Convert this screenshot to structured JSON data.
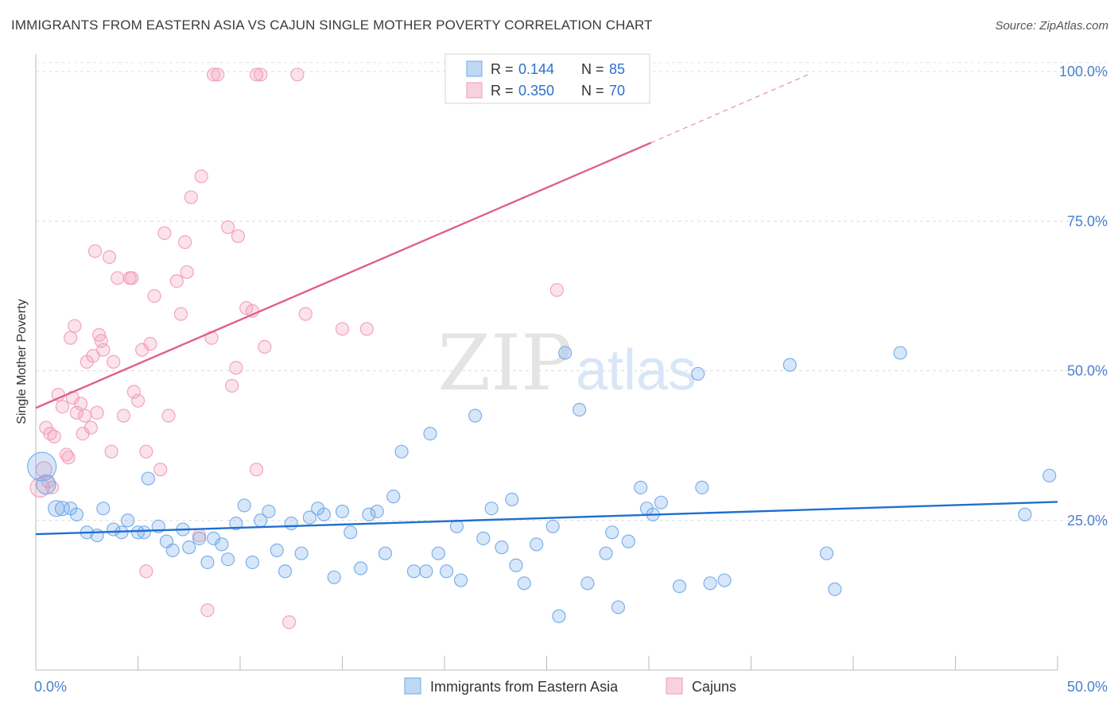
{
  "title": "IMMIGRANTS FROM EASTERN ASIA VS CAJUN SINGLE MOTHER POVERTY CORRELATION CHART",
  "source": "Source: ZipAtlas.com",
  "watermark": {
    "zip": "ZIP",
    "atlas": "atlas"
  },
  "chart_data": {
    "type": "scatter",
    "ylabel": "Single Mother Poverty",
    "xlim": [
      0,
      50
    ],
    "ylim": [
      0,
      102
    ],
    "x_tick_labels": [
      "0.0%",
      "50.0%"
    ],
    "y_tick_labels": [
      "25.0%",
      "50.0%",
      "75.0%",
      "100.0%"
    ],
    "y_ticks": [
      25,
      50,
      75,
      100
    ],
    "grid": "horizontal dashed",
    "legend_position": "top-center",
    "series": [
      {
        "name": "Immigrants from Eastern Asia",
        "color": "#6fa8e8",
        "line_color": "#1f6fd0",
        "r": "0.144",
        "n": "85",
        "trend": {
          "x": [
            0,
            50
          ],
          "y": [
            22.7,
            28.1
          ]
        },
        "points": [
          [
            0.3,
            34,
            18
          ],
          [
            0.5,
            31,
            12
          ],
          [
            1,
            27,
            10
          ],
          [
            1.3,
            27,
            9
          ],
          [
            1.7,
            27,
            8
          ],
          [
            2,
            26,
            8
          ],
          [
            2.5,
            23,
            8
          ],
          [
            3,
            22.5,
            8
          ],
          [
            3.3,
            27,
            8
          ],
          [
            3.8,
            23.5,
            8
          ],
          [
            4.2,
            23,
            8
          ],
          [
            4.5,
            25,
            8
          ],
          [
            5,
            23,
            8
          ],
          [
            5.3,
            23,
            8
          ],
          [
            5.5,
            32,
            8
          ],
          [
            6,
            24,
            8
          ],
          [
            6.4,
            21.5,
            8
          ],
          [
            6.7,
            20,
            8
          ],
          [
            7.2,
            23.5,
            8
          ],
          [
            7.5,
            20.5,
            8
          ],
          [
            8,
            22,
            8
          ],
          [
            8.4,
            18,
            8
          ],
          [
            8.7,
            22,
            8
          ],
          [
            9.1,
            21,
            8
          ],
          [
            9.4,
            18.5,
            8
          ],
          [
            9.8,
            24.5,
            8
          ],
          [
            10.2,
            27.5,
            8
          ],
          [
            10.6,
            18,
            8
          ],
          [
            11,
            25,
            8
          ],
          [
            11.4,
            26.5,
            8
          ],
          [
            11.8,
            20,
            8
          ],
          [
            12.2,
            16.5,
            8
          ],
          [
            12.5,
            24.5,
            8
          ],
          [
            13,
            19.5,
            8
          ],
          [
            13.4,
            25.5,
            8
          ],
          [
            13.8,
            27,
            8
          ],
          [
            14.1,
            26,
            8
          ],
          [
            14.6,
            15.5,
            8
          ],
          [
            15,
            26.5,
            8
          ],
          [
            15.4,
            23,
            8
          ],
          [
            15.9,
            17,
            8
          ],
          [
            16.3,
            26,
            8
          ],
          [
            16.7,
            26.5,
            8
          ],
          [
            17.1,
            19.5,
            8
          ],
          [
            17.5,
            29,
            8
          ],
          [
            17.9,
            36.5,
            8
          ],
          [
            18.5,
            16.5,
            8
          ],
          [
            19.1,
            16.5,
            8
          ],
          [
            19.3,
            39.5,
            8
          ],
          [
            19.7,
            19.5,
            8
          ],
          [
            20.1,
            16.5,
            8
          ],
          [
            20.6,
            24,
            8
          ],
          [
            20.8,
            15,
            8
          ],
          [
            21.5,
            42.5,
            8
          ],
          [
            21.9,
            22,
            8
          ],
          [
            22.3,
            27,
            8
          ],
          [
            22.8,
            20.5,
            8
          ],
          [
            23.3,
            28.5,
            8
          ],
          [
            23.5,
            17.5,
            8
          ],
          [
            23.9,
            14.5,
            8
          ],
          [
            24.5,
            21,
            8
          ],
          [
            25.3,
            24,
            8
          ],
          [
            25.6,
            9,
            8
          ],
          [
            25.9,
            53,
            8
          ],
          [
            26.6,
            43.5,
            8
          ],
          [
            27,
            14.5,
            8
          ],
          [
            27.9,
            19.5,
            8
          ],
          [
            28.2,
            23,
            8
          ],
          [
            28.5,
            10.5,
            8
          ],
          [
            29,
            21.5,
            8
          ],
          [
            29.6,
            30.5,
            8
          ],
          [
            29.9,
            27,
            8
          ],
          [
            30.2,
            26,
            8
          ],
          [
            30.6,
            28,
            8
          ],
          [
            31.5,
            14,
            8
          ],
          [
            32.4,
            49.5,
            8
          ],
          [
            32.6,
            30.5,
            8
          ],
          [
            33,
            14.5,
            8
          ],
          [
            33.7,
            15,
            8
          ],
          [
            36.9,
            51,
            8
          ],
          [
            38.7,
            19.5,
            8
          ],
          [
            39.1,
            13.5,
            8
          ],
          [
            42.3,
            53,
            8
          ],
          [
            48.4,
            26,
            8
          ],
          [
            49.6,
            32.5,
            8
          ]
        ]
      },
      {
        "name": "Cajuns",
        "color": "#f29ab6",
        "line_color": "#e0608a",
        "r": "0.350",
        "n": "70",
        "trend": {
          "x": [
            0,
            30.1
          ],
          "y": [
            43.8,
            88.1
          ]
        },
        "trend_dashed": {
          "x": [
            30.1,
            37.8
          ],
          "y": [
            88.1,
            99.5
          ]
        },
        "points": [
          [
            0.2,
            30.5,
            12
          ],
          [
            0.4,
            33.5,
            10
          ],
          [
            0.6,
            31.5,
            8
          ],
          [
            0.8,
            30.5,
            8
          ],
          [
            0.5,
            40.5,
            8
          ],
          [
            0.7,
            39.5,
            8
          ],
          [
            0.9,
            39,
            8
          ],
          [
            1.1,
            46,
            8
          ],
          [
            1.3,
            44,
            8
          ],
          [
            1.5,
            36,
            8
          ],
          [
            1.6,
            35.5,
            8
          ],
          [
            1.8,
            45.5,
            8
          ],
          [
            1.7,
            55.5,
            8
          ],
          [
            1.9,
            57.5,
            8
          ],
          [
            2,
            43,
            8
          ],
          [
            2.2,
            44.5,
            8
          ],
          [
            2.3,
            39.5,
            8
          ],
          [
            2.4,
            42.5,
            8
          ],
          [
            2.5,
            51.5,
            8
          ],
          [
            2.8,
            52.5,
            8
          ],
          [
            2.7,
            40.5,
            8
          ],
          [
            3,
            43,
            8
          ],
          [
            3.1,
            56,
            8
          ],
          [
            3.2,
            55,
            8
          ],
          [
            3.3,
            53.5,
            8
          ],
          [
            2.9,
            70,
            8
          ],
          [
            3.6,
            69,
            8
          ],
          [
            3.7,
            36.5,
            8
          ],
          [
            3.8,
            51.5,
            8
          ],
          [
            4,
            65.5,
            8
          ],
          [
            4.3,
            42.5,
            8
          ],
          [
            4.6,
            65.5,
            8
          ],
          [
            4.7,
            65.5,
            8
          ],
          [
            4.8,
            46.5,
            8
          ],
          [
            5,
            45,
            8
          ],
          [
            5.2,
            53.5,
            8
          ],
          [
            5.4,
            36.5,
            8
          ],
          [
            5.6,
            54.5,
            8
          ],
          [
            5.8,
            62.5,
            8
          ],
          [
            6.1,
            33.5,
            8
          ],
          [
            6.3,
            73,
            8
          ],
          [
            6.5,
            42.5,
            8
          ],
          [
            6.9,
            65,
            8
          ],
          [
            7.1,
            59.5,
            8
          ],
          [
            7.3,
            71.5,
            8
          ],
          [
            7.4,
            66.5,
            8
          ],
          [
            7.6,
            79,
            8
          ],
          [
            8,
            22.5,
            8
          ],
          [
            8.1,
            82.5,
            8
          ],
          [
            8.4,
            10,
            8
          ],
          [
            8.6,
            55.5,
            8
          ],
          [
            8.7,
            99.5,
            8
          ],
          [
            8.9,
            99.5,
            8
          ],
          [
            9.4,
            74,
            8
          ],
          [
            9.6,
            47.5,
            8
          ],
          [
            9.8,
            50.5,
            8
          ],
          [
            9.9,
            72.5,
            8
          ],
          [
            10.3,
            60.5,
            8
          ],
          [
            10.6,
            60,
            8
          ],
          [
            10.8,
            33.5,
            8
          ],
          [
            11,
            99.5,
            8
          ],
          [
            11.2,
            54,
            8
          ],
          [
            12.4,
            8,
            8
          ],
          [
            12.8,
            99.5,
            8
          ],
          [
            13.2,
            59.5,
            8
          ],
          [
            15,
            57,
            8
          ],
          [
            16.2,
            57,
            8
          ],
          [
            5.4,
            16.5,
            8
          ],
          [
            25.5,
            63.5,
            8
          ],
          [
            10.8,
            99.5,
            8
          ]
        ]
      }
    ]
  }
}
